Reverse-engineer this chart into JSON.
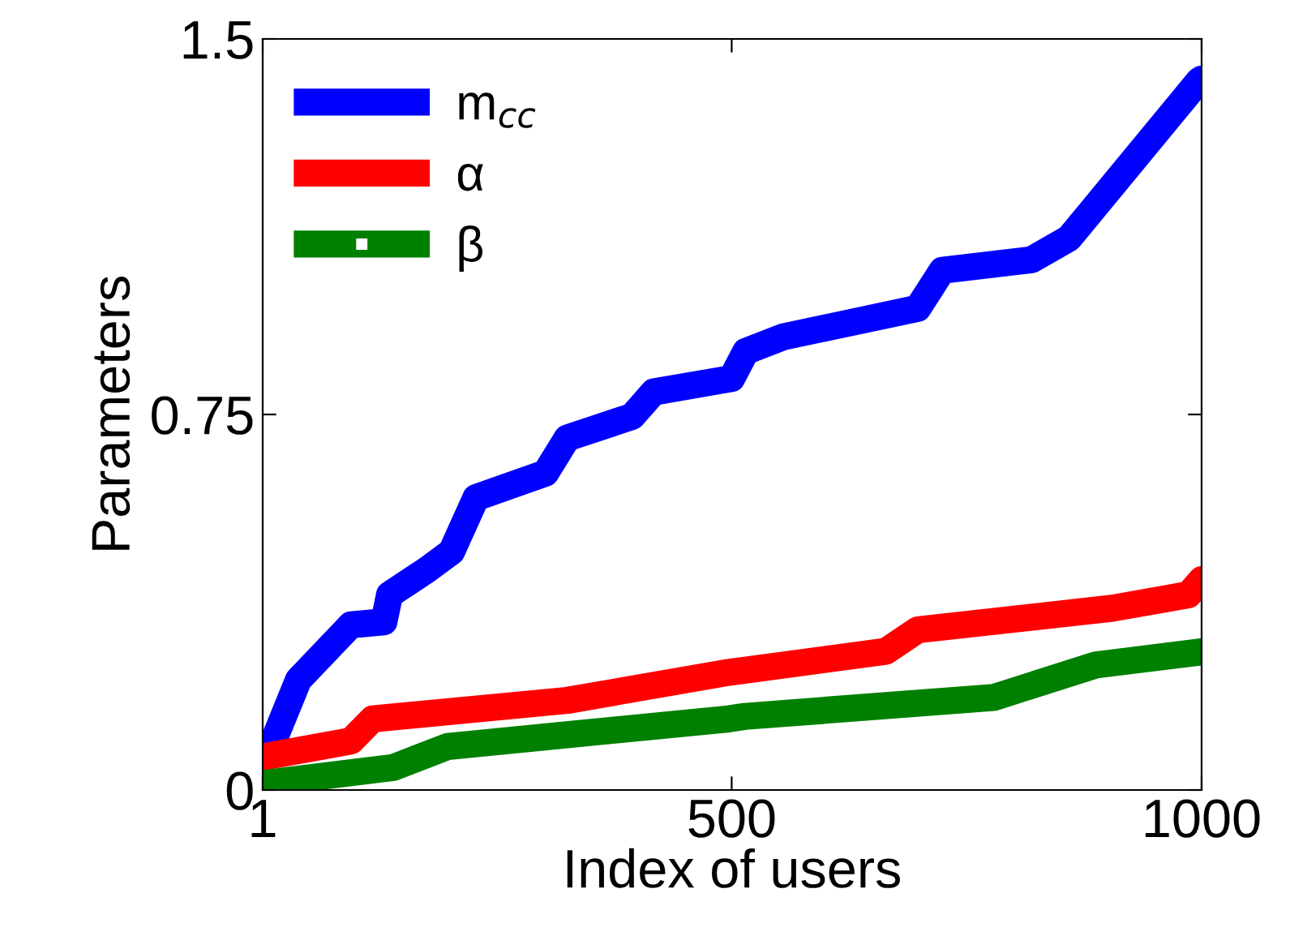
{
  "chart_data": {
    "type": "line",
    "xlabel": "Index of users",
    "ylabel": "Parameters",
    "xlim": [
      1,
      1000
    ],
    "ylim": [
      0,
      1.5
    ],
    "xticks": [
      1,
      500,
      1000
    ],
    "yticks": [
      0,
      0.75,
      1.5
    ],
    "grid": false,
    "legend": "top left",
    "line_style": "solid",
    "series": [
      {
        "name": "m$_{cc}$",
        "color": "#0000ff",
        "marker": "circle",
        "x": [
          13,
          39,
          95,
          130,
          136,
          176,
          202,
          228,
          302,
          325,
          394,
          417,
          500,
          515,
          555,
          698,
          724,
          819,
          859,
          997,
          1000
        ],
        "values": [
          0.1,
          0.22,
          0.33,
          0.336,
          0.39,
          0.44,
          0.476,
          0.584,
          0.633,
          0.703,
          0.746,
          0.795,
          0.822,
          0.876,
          0.905,
          0.962,
          1.038,
          1.059,
          1.102,
          1.416,
          1.42
        ]
      },
      {
        "name": "α",
        "color": "#ff0000",
        "marker": "cross",
        "x": [
          1,
          95,
          118,
          325,
          497,
          664,
          698,
          905,
          986,
          1000
        ],
        "values": [
          0.066,
          0.098,
          0.142,
          0.179,
          0.235,
          0.277,
          0.32,
          0.363,
          0.39,
          0.42
        ]
      },
      {
        "name": "β",
        "color": "#008000",
        "marker": "square",
        "x": [
          1,
          140,
          198,
          497,
          514,
          779,
          888,
          1000
        ],
        "values": [
          0.013,
          0.045,
          0.087,
          0.142,
          0.147,
          0.185,
          0.25,
          0.276
        ]
      }
    ]
  }
}
